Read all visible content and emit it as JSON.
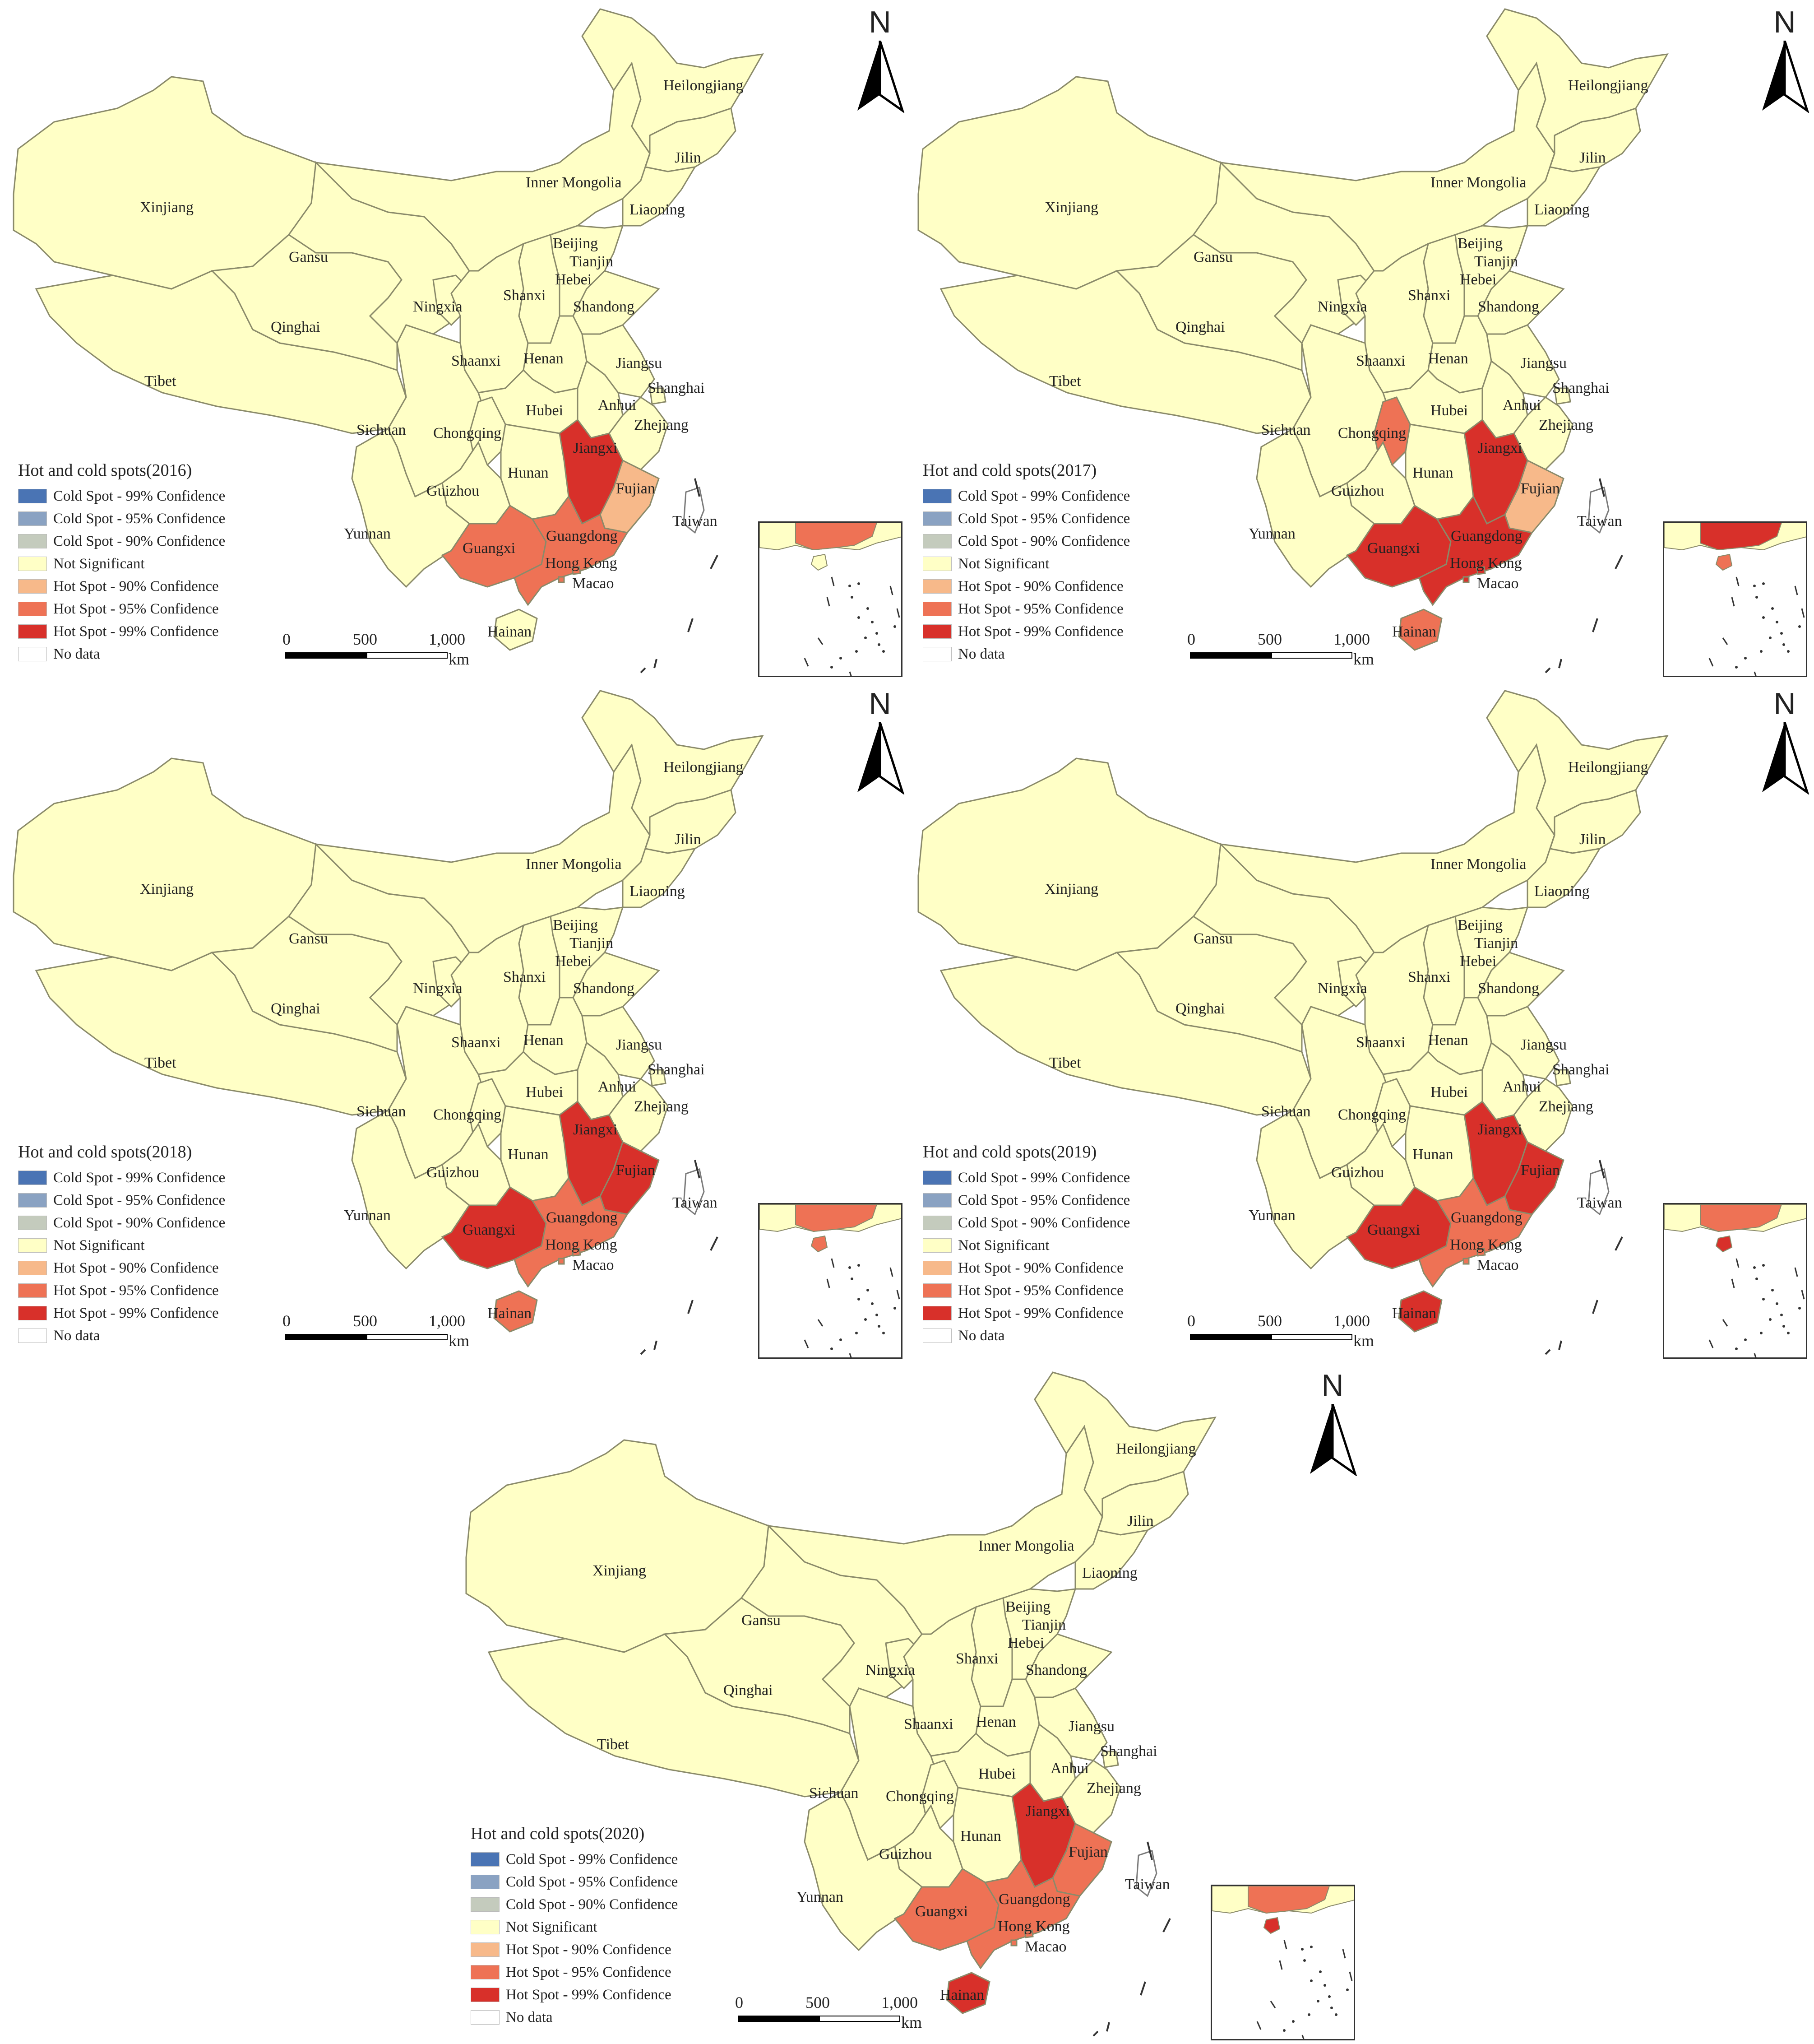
{
  "legend_categories": [
    {
      "label": "Cold Spot - 99% Confidence",
      "color": "#4a74b4"
    },
    {
      "label": "Cold Spot - 95% Confidence",
      "color": "#8aa2c2"
    },
    {
      "label": "Cold Spot - 90% Confidence",
      "color": "#c4cbbd"
    },
    {
      "label": "Not Significant",
      "color": "#ffffc6"
    },
    {
      "label": "Hot Spot - 90% Confidence",
      "color": "#f7b98a"
    },
    {
      "label": "Hot Spot - 95% Confidence",
      "color": "#ee7255"
    },
    {
      "label": "Hot Spot - 99% Confidence",
      "color": "#d8302a"
    },
    {
      "label": "No data",
      "color": "#ffffff"
    }
  ],
  "north_label": "N",
  "scale": {
    "ticks": [
      "0",
      "500",
      "1,000"
    ],
    "unit": "km"
  },
  "province_labels": {
    "Xinjiang": "Xinjiang",
    "Tibet": "Tibet",
    "Qinghai": "Qinghai",
    "Gansu": "Gansu",
    "Inner Mongolia": "Inner Mongolia",
    "Heilongjiang": "Heilongjiang",
    "Jilin": "Jilin",
    "Liaoning": "Liaoning",
    "Beijing": "Beijing",
    "Tianjin": "Tianjin",
    "Hebei": "Hebei",
    "Shanxi": "Shanxi",
    "Shandong": "Shandong",
    "Ningxia": "Ningxia",
    "Shaanxi": "Shaanxi",
    "Henan": "Henan",
    "Jiangsu": "Jiangsu",
    "Shanghai": "Shanghai",
    "Anhui": "Anhui",
    "Hubei": "Hubei",
    "Zhejiang": "Zhejiang",
    "Sichuan": "Sichuan",
    "Chongqing": "Chongqing",
    "Jiangxi": "Jiangxi",
    "Hunan": "Hunan",
    "Guizhou": "Guizhou",
    "Fujian": "Fujian",
    "Yunnan": "Yunnan",
    "Guangxi": "Guangxi",
    "Guangdong": "Guangdong",
    "Taiwan": "Taiwan",
    "Hong Kong": "Hong Kong",
    "Macao": "Macao",
    "Hainan": "Hainan"
  },
  "maps": [
    {
      "year": "2016",
      "title": "Hot and cold spots(2016)",
      "hot_spots": {
        "Jiangxi": 6,
        "Fujian": 4,
        "Guangxi": 5,
        "Guangdong": 5,
        "Hainan": 3,
        "Hong Kong": 5,
        "Macao": 5
      }
    },
    {
      "year": "2017",
      "title": "Hot and cold spots(2017)",
      "hot_spots": {
        "Chongqing": 5,
        "Jiangxi": 6,
        "Fujian": 4,
        "Guangxi": 6,
        "Guangdong": 6,
        "Hainan": 5,
        "Hong Kong": 6,
        "Macao": 6
      }
    },
    {
      "year": "2018",
      "title": "Hot and cold spots(2018)",
      "hot_spots": {
        "Jiangxi": 6,
        "Fujian": 6,
        "Guangxi": 6,
        "Guangdong": 5,
        "Hainan": 5,
        "Hong Kong": 5,
        "Macao": 5
      }
    },
    {
      "year": "2019",
      "title": "Hot and cold spots(2019)",
      "hot_spots": {
        "Jiangxi": 6,
        "Fujian": 6,
        "Guangxi": 6,
        "Guangdong": 5,
        "Hainan": 6,
        "Hong Kong": 5,
        "Macao": 5
      }
    },
    {
      "year": "2020",
      "title": "Hot and cold spots(2020)",
      "hot_spots": {
        "Jiangxi": 6,
        "Fujian": 5,
        "Guangxi": 5,
        "Guangdong": 5,
        "Hainan": 6,
        "Hong Kong": 5,
        "Macao": 5
      }
    }
  ]
}
